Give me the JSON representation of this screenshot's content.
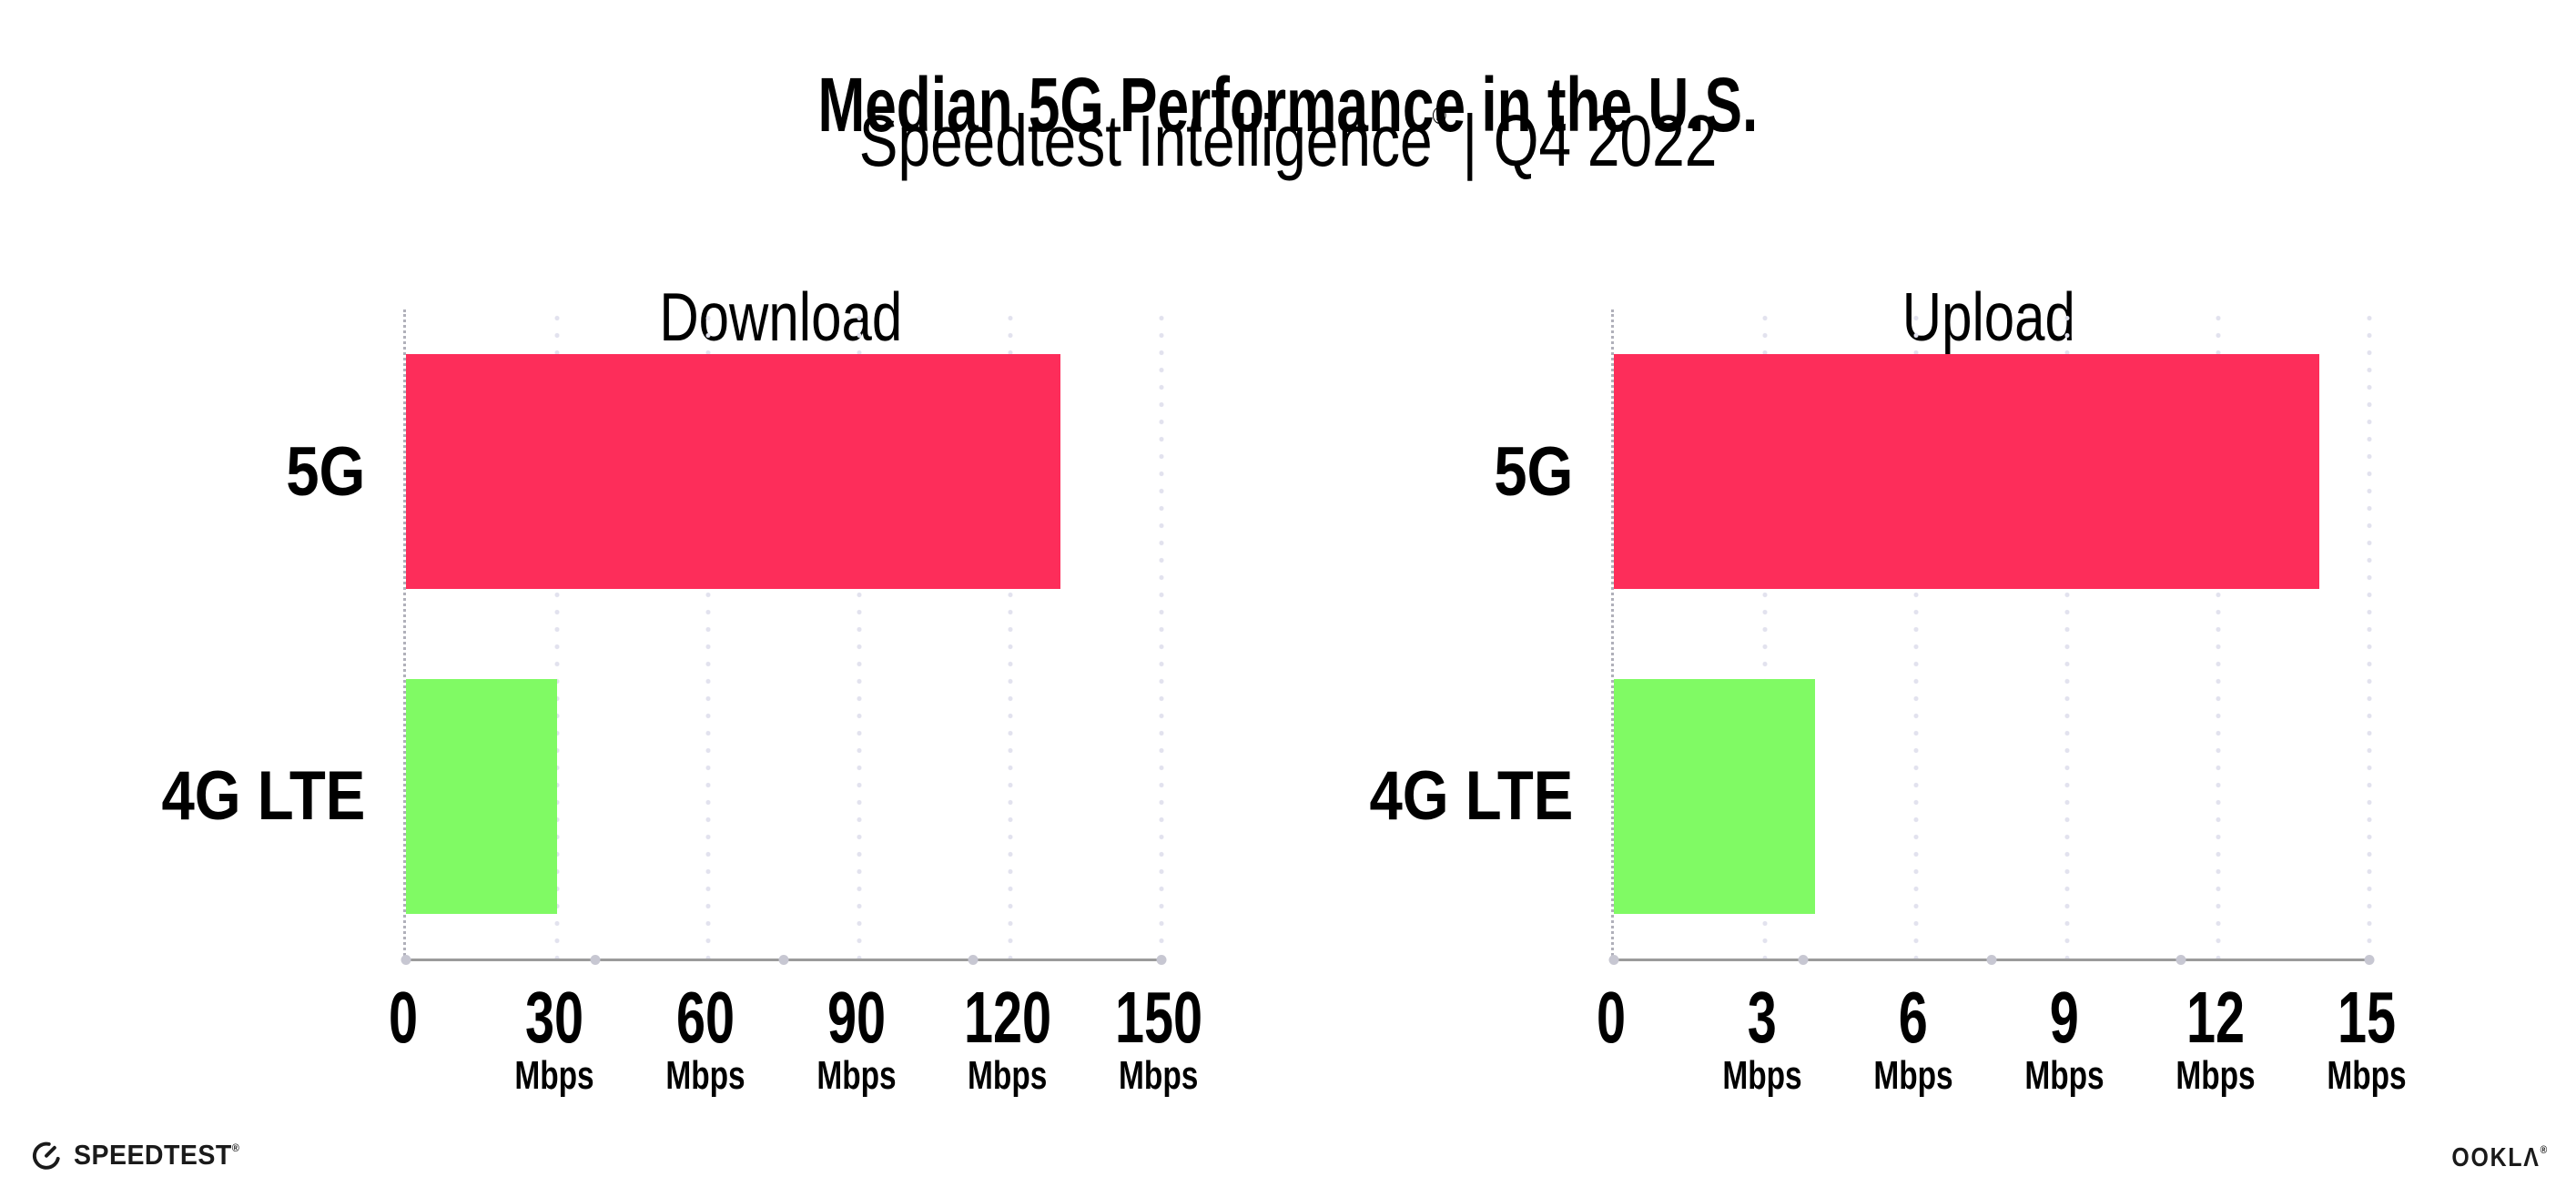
{
  "header": {
    "title": "Median 5G Performance in the U.S.",
    "subtitle": {
      "brand": "Speedtest Intelligence",
      "mark": "®",
      "divider": "|",
      "period": "Q4 2022"
    }
  },
  "chart_data": [
    {
      "type": "bar",
      "orientation": "horizontal",
      "title": "Download",
      "categories": [
        "5G",
        "4G LTE"
      ],
      "values": [
        130,
        30
      ],
      "unit": "Mbps",
      "xlim": [
        0,
        150
      ],
      "xtick_step": 30,
      "xticks": [
        {
          "label": "0",
          "unit": ""
        },
        {
          "label": "30",
          "unit": "Mbps"
        },
        {
          "label": "60",
          "unit": "Mbps"
        },
        {
          "label": "90",
          "unit": "Mbps"
        },
        {
          "label": "120",
          "unit": "Mbps"
        },
        {
          "label": "150",
          "unit": "Mbps"
        }
      ],
      "bar_colors": [
        "#fd2d5a",
        "#80fa64"
      ],
      "grid": "vertical-dotted",
      "legend": "none"
    },
    {
      "type": "bar",
      "orientation": "horizontal",
      "title": "Upload",
      "categories": [
        "5G",
        "4G LTE"
      ],
      "values": [
        14,
        4
      ],
      "unit": "Mbps",
      "xlim": [
        0,
        15
      ],
      "xtick_step": 3,
      "xticks": [
        {
          "label": "0",
          "unit": ""
        },
        {
          "label": "3",
          "unit": "Mbps"
        },
        {
          "label": "6",
          "unit": "Mbps"
        },
        {
          "label": "9",
          "unit": "Mbps"
        },
        {
          "label": "12",
          "unit": "Mbps"
        },
        {
          "label": "15",
          "unit": "Mbps"
        }
      ],
      "bar_colors": [
        "#fd2d5a",
        "#80fa64"
      ],
      "grid": "vertical-dotted",
      "legend": "none"
    }
  ],
  "footer": {
    "speedtest": {
      "icon": "speedtest-gauge-icon",
      "label": "SPEEDTEST",
      "mark": "®"
    },
    "ookla": {
      "label": "OOKLΛ",
      "mark": "®"
    }
  },
  "colors": {
    "bar_5g": "#fd2d5a",
    "bar_4g_lte": "#80fa64",
    "grid_dot": "#e2e2ee",
    "x_axis_line": "#9b9b9b",
    "y_axis_line": "#b0b0ba",
    "text": "#000000",
    "background": "#ffffff"
  }
}
